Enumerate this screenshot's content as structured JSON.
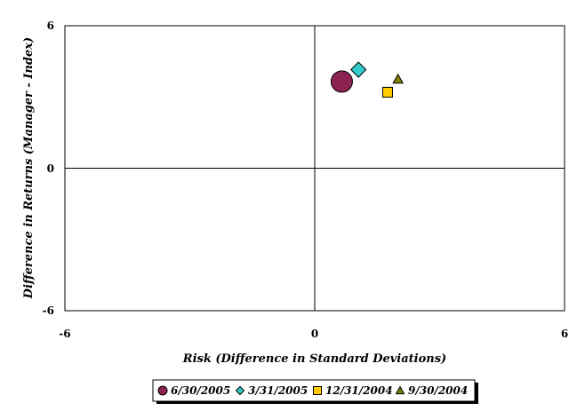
{
  "chart_data": {
    "type": "scatter",
    "title": "",
    "xlabel": "Risk (Difference in Standard Deviations)",
    "ylabel": "Difference in Returns (Manager - Index)",
    "xlim": [
      -6,
      6
    ],
    "ylim": [
      -6,
      6
    ],
    "x_ticks": [
      "-6",
      "0",
      "6"
    ],
    "y_ticks": [
      "6",
      "0",
      "-6"
    ],
    "grid": false,
    "legend_position": "bottom",
    "series": [
      {
        "name": "6/30/2005",
        "marker": "circle",
        "color": "#8B2252",
        "values": [
          {
            "x": 0.65,
            "y": 3.65
          }
        ]
      },
      {
        "name": "3/31/2005",
        "marker": "diamond",
        "color": "#33CCCC",
        "values": [
          {
            "x": 1.05,
            "y": 4.15
          }
        ]
      },
      {
        "name": "12/31/2004",
        "marker": "square",
        "color": "#FFCC00",
        "values": [
          {
            "x": 1.75,
            "y": 3.2
          }
        ]
      },
      {
        "name": "9/30/2004",
        "marker": "triangle",
        "color": "#808000",
        "values": [
          {
            "x": 2.0,
            "y": 3.75
          }
        ]
      }
    ]
  }
}
